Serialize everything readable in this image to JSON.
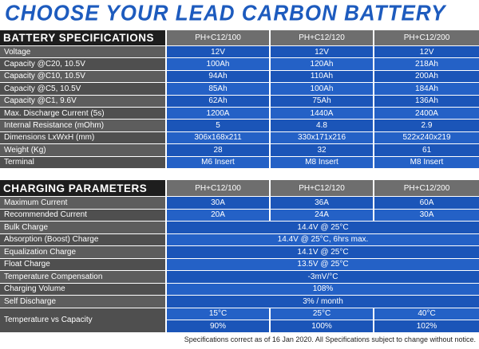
{
  "title": "CHOOSE YOUR LEAD CARBON BATTERY",
  "specs": {
    "heading": "BATTERY SPECIFICATIONS",
    "columns": [
      "PH+C12/100",
      "PH+C12/120",
      "PH+C12/200"
    ],
    "rows": [
      {
        "label": "Voltage",
        "cells": [
          "12V",
          "12V",
          "12V"
        ]
      },
      {
        "label": "Capacity @C20, 10.5V",
        "cells": [
          "100Ah",
          "120Ah",
          "218Ah"
        ]
      },
      {
        "label": "Capacity @C10, 10.5V",
        "cells": [
          "94Ah",
          "110Ah",
          "200Ah"
        ]
      },
      {
        "label": "Capacity @C5, 10.5V",
        "cells": [
          "85Ah",
          "100Ah",
          "184Ah"
        ]
      },
      {
        "label": "Capacity @C1, 9.6V",
        "cells": [
          "62Ah",
          "75Ah",
          "136Ah"
        ]
      },
      {
        "label": "Max. Discharge Current (5s)",
        "cells": [
          "1200A",
          "1440A",
          "2400A"
        ]
      },
      {
        "label": "Internal Resistance (mOhm)",
        "cells": [
          "5",
          "4.8",
          "2.9"
        ]
      },
      {
        "label": "Dimensions LxWxH (mm)",
        "cells": [
          "306x168x211",
          "330x171x216",
          "522x240x219"
        ]
      },
      {
        "label": "Weight (Kg)",
        "cells": [
          "28",
          "32",
          "61"
        ]
      },
      {
        "label": "Terminal",
        "cells": [
          "M6 Insert",
          "M8 Insert",
          "M8 Insert"
        ]
      }
    ]
  },
  "charging": {
    "heading": "CHARGING PARAMETERS",
    "columns": [
      "PH+C12/100",
      "PH+C12/120",
      "PH+C12/200"
    ],
    "rows": [
      {
        "label": "Maximum Current",
        "cells": [
          "30A",
          "36A",
          "60A"
        ]
      },
      {
        "label": "Recommended Current",
        "cells": [
          "20A",
          "24A",
          "30A"
        ]
      },
      {
        "label": "Bulk Charge",
        "cells": [
          "14.4V @ 25°C"
        ]
      },
      {
        "label": "Absorption (Boost) Charge",
        "cells": [
          "14.4V @ 25°C, 6hrs max."
        ]
      },
      {
        "label": "Equalization Charge",
        "cells": [
          "14.1V @ 25°C"
        ]
      },
      {
        "label": "Float Charge",
        "cells": [
          "13.5V @ 25°C"
        ]
      },
      {
        "label": "Temperature Compensation",
        "cells": [
          "-3mV/°C"
        ]
      },
      {
        "label": "Charging Volume",
        "cells": [
          "108%"
        ]
      },
      {
        "label": "Self Discharge",
        "cells": [
          "3% / month"
        ]
      },
      {
        "label": "Temperature vs Capacity",
        "subrows": [
          [
            "15°C",
            "25°C",
            "40°C"
          ],
          [
            "90%",
            "100%",
            "102%"
          ]
        ]
      }
    ]
  },
  "footnote": "Specifications correct as of 16 Jan 2020. All Specifications subject to change without notice."
}
